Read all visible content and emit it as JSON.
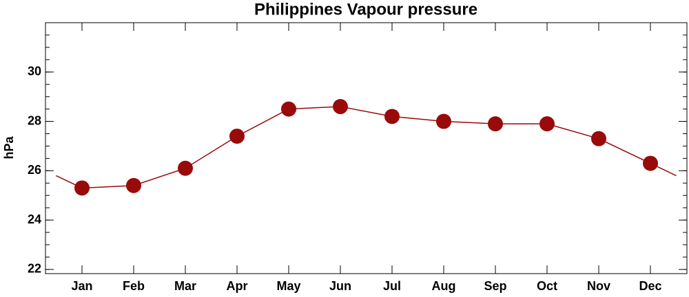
{
  "chart_data": {
    "type": "line",
    "title": "Philippines Vapour pressure",
    "y_label": "hPa",
    "categories": [
      "Jan",
      "Feb",
      "Mar",
      "Apr",
      "May",
      "Jun",
      "Jul",
      "Aug",
      "Sep",
      "Oct",
      "Nov",
      "Dec"
    ],
    "values": [
      25.3,
      25.4,
      26.1,
      27.4,
      28.5,
      28.6,
      28.2,
      28.0,
      27.9,
      27.9,
      27.3,
      26.3
    ],
    "color": "#990a0a",
    "ylim": [
      21.83,
      32
    ],
    "yticks": [
      22,
      24,
      26,
      28,
      30
    ],
    "grid": false
  }
}
